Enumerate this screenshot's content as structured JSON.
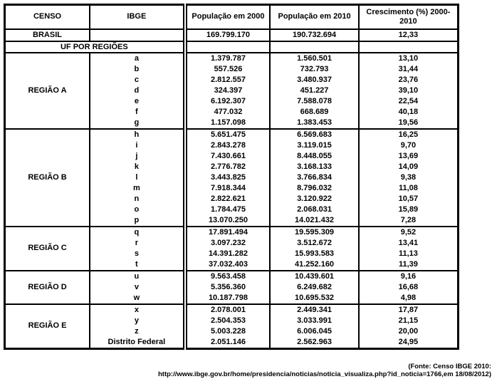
{
  "page": {
    "background_color": "#ffffff",
    "text_color": "#000000",
    "border_color": "#000000"
  },
  "table": {
    "headers": [
      "CENSO",
      "IBGE",
      "População em 2000",
      "População em 2010",
      "Crescimento (%) 2000-2010"
    ],
    "brasil": {
      "label": "BRASIL",
      "pop2000": "169.799.170",
      "pop2010": "190.732.694",
      "growth": "12,33"
    },
    "uf_section_label": "UF POR REGIÕES",
    "regions": [
      {
        "name": "REGIÃO A",
        "rows": [
          {
            "code": "a",
            "pop2000": "1.379.787",
            "pop2010": "1.560.501",
            "growth": "13,10"
          },
          {
            "code": "b",
            "pop2000": "557.526",
            "pop2010": "732.793",
            "growth": "31,44"
          },
          {
            "code": "c",
            "pop2000": "2.812.557",
            "pop2010": "3.480.937",
            "growth": "23,76"
          },
          {
            "code": "d",
            "pop2000": "324.397",
            "pop2010": "451.227",
            "growth": "39,10"
          },
          {
            "code": "e",
            "pop2000": "6.192.307",
            "pop2010": "7.588.078",
            "growth": "22,54"
          },
          {
            "code": "f",
            "pop2000": "477.032",
            "pop2010": "668.689",
            "growth": "40,18"
          },
          {
            "code": "g",
            "pop2000": "1.157.098",
            "pop2010": "1.383.453",
            "growth": "19,56"
          }
        ]
      },
      {
        "name": "REGIÃO B",
        "rows": [
          {
            "code": "h",
            "pop2000": "5.651.475",
            "pop2010": "6.569.683",
            "growth": "16,25"
          },
          {
            "code": "i",
            "pop2000": "2.843.278",
            "pop2010": "3.119.015",
            "growth": "9,70"
          },
          {
            "code": "j",
            "pop2000": "7.430.661",
            "pop2010": "8.448.055",
            "growth": "13,69"
          },
          {
            "code": "k",
            "pop2000": "2.776.782",
            "pop2010": "3.168.133",
            "growth": "14,09"
          },
          {
            "code": "l",
            "pop2000": "3.443.825",
            "pop2010": "3.766.834",
            "growth": "9,38"
          },
          {
            "code": "m",
            "pop2000": "7.918.344",
            "pop2010": "8.796.032",
            "growth": "11,08"
          },
          {
            "code": "n",
            "pop2000": "2.822.621",
            "pop2010": "3.120.922",
            "growth": "10,57"
          },
          {
            "code": "o",
            "pop2000": "1.784.475",
            "pop2010": "2.068.031",
            "growth": "15,89"
          },
          {
            "code": "p",
            "pop2000": "13.070.250",
            "pop2010": "14.021.432",
            "growth": "7,28"
          }
        ]
      },
      {
        "name": "REGIÃO C",
        "rows": [
          {
            "code": "q",
            "pop2000": "17.891.494",
            "pop2010": "19.595.309",
            "growth": "9,52"
          },
          {
            "code": "r",
            "pop2000": "3.097.232",
            "pop2010": "3.512.672",
            "growth": "13,41"
          },
          {
            "code": "s",
            "pop2000": "14.391.282",
            "pop2010": "15.993.583",
            "growth": "11,13"
          },
          {
            "code": "t",
            "pop2000": "37.032.403",
            "pop2010": "41.252.160",
            "growth": "11,39"
          }
        ]
      },
      {
        "name": "REGIÃO D",
        "rows": [
          {
            "code": "u",
            "pop2000": "9.563.458",
            "pop2010": "10.439.601",
            "growth": "9,16"
          },
          {
            "code": "v",
            "pop2000": "5.356.360",
            "pop2010": "6.249.682",
            "growth": "16,68"
          },
          {
            "code": "w",
            "pop2000": "10.187.798",
            "pop2010": "10.695.532",
            "growth": "4,98"
          }
        ]
      },
      {
        "name": "REGIÃO E",
        "rows": [
          {
            "code": "x",
            "pop2000": "2.078.001",
            "pop2010": "2.449.341",
            "growth": "17,87"
          },
          {
            "code": "y",
            "pop2000": "2.504.353",
            "pop2010": "3.033.991",
            "growth": "21,15"
          },
          {
            "code": "z",
            "pop2000": "5.003.228",
            "pop2010": "6.006.045",
            "growth": "20,00"
          },
          {
            "code": "Distrito Federal",
            "pop2000": "2.051.146",
            "pop2010": "2.562.963",
            "growth": "24,95"
          }
        ]
      }
    ]
  },
  "footer": {
    "line1": "(Fonte: Censo IBGE 2010:",
    "line2": "http://www.ibge.gov.br/home/presidencia/noticias/noticia_visualiza.php?id_noticia=1766,em 18/08/2012)"
  }
}
